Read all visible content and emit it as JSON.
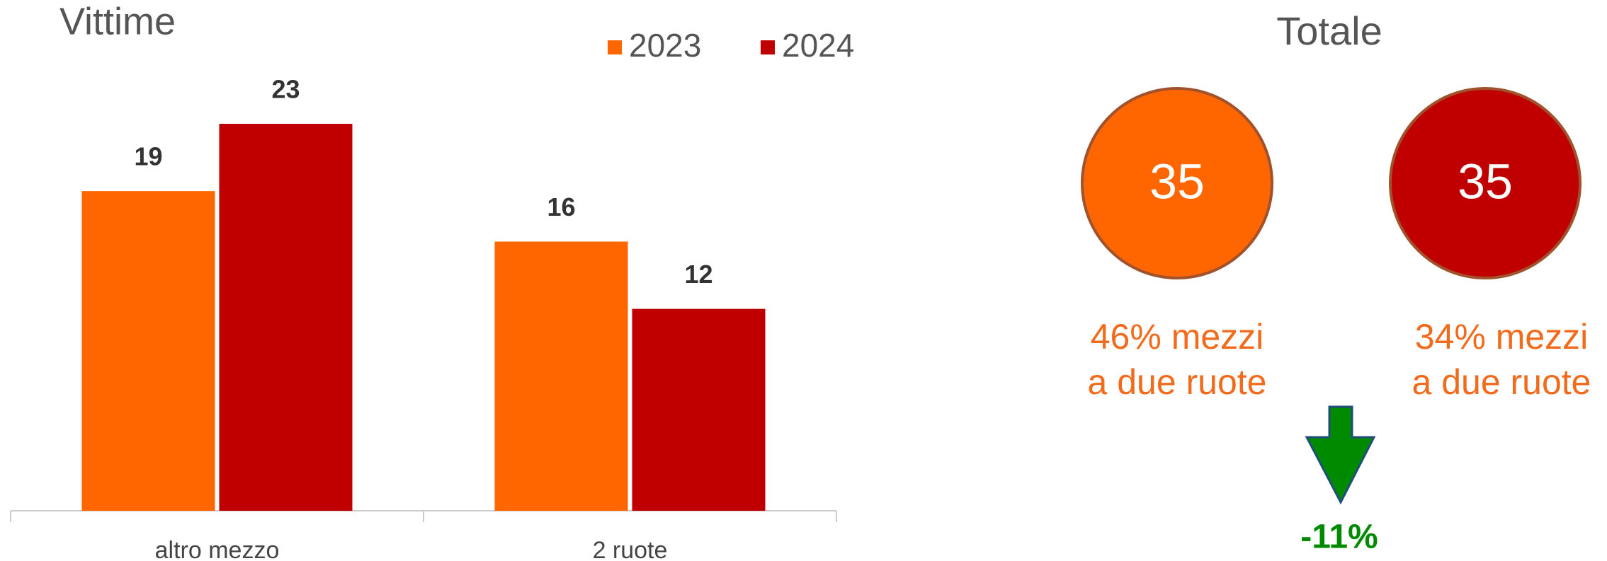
{
  "chart_data": {
    "type": "bar",
    "title": "Vittime",
    "categories": [
      "altro mezzo",
      "2 ruote"
    ],
    "series": [
      {
        "name": "2023",
        "color": "#ff6600",
        "values": [
          19,
          16
        ]
      },
      {
        "name": "2024",
        "color": "#c00000",
        "values": [
          23,
          12
        ]
      }
    ]
  },
  "totale": {
    "title": "Totale",
    "items": [
      {
        "value": 35,
        "color": "#ff6600",
        "lines": [
          "46% mezzi",
          "a due ruote"
        ]
      },
      {
        "value": 35,
        "color": "#c00000",
        "lines": [
          "34% mezzi",
          "a due ruote"
        ]
      }
    ],
    "change": {
      "value": -11,
      "label": "-11%",
      "color": "#008a00"
    }
  }
}
